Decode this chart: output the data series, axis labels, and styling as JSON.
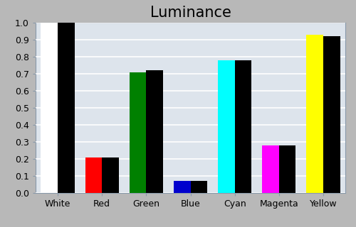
{
  "title": "Luminance",
  "categories": [
    "White",
    "Red",
    "Green",
    "Blue",
    "Cyan",
    "Magenta",
    "Yellow"
  ],
  "measured_values": [
    1.0,
    0.21,
    0.71,
    0.07,
    0.78,
    0.28,
    0.93
  ],
  "reference_values": [
    1.0,
    0.21,
    0.72,
    0.07,
    0.78,
    0.28,
    0.92
  ],
  "measured_colors": [
    "#ffffff",
    "#ff0000",
    "#008000",
    "#0000cd",
    "#00ffff",
    "#ff00ff",
    "#ffff00"
  ],
  "reference_color": "#000000",
  "background_color": "#b8b8b8",
  "plot_bg_color": "#dde4ec",
  "ylim": [
    0.0,
    1.0
  ],
  "yticks": [
    0.0,
    0.1,
    0.2,
    0.3,
    0.4,
    0.5,
    0.6,
    0.7,
    0.8,
    0.9,
    1.0
  ],
  "bar_width": 0.38,
  "title_fontsize": 15,
  "tick_fontsize": 9,
  "grid_color": "#ffffff",
  "grid_linewidth": 1.2,
  "spine_color": "#8899aa"
}
